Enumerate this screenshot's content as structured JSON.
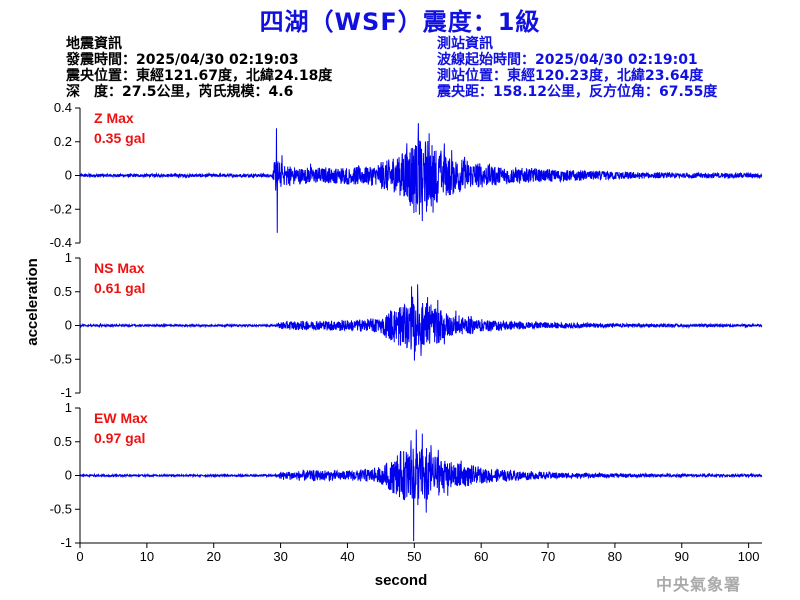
{
  "header": {
    "title": "四湖（WSF）震度：1級",
    "quake_info": {
      "heading": "地震資訊",
      "origin_time": "發震時間：2025/04/30 02:19:03",
      "epicenter": "震央位置：東經121.67度，北緯24.18度",
      "depth_magnitude": "深　度：27.5公里，芮氏規模：4.6"
    },
    "station_info": {
      "heading": "測站資訊",
      "wave_start": "波線起始時間：2025/04/30 02:19:01",
      "station_location": "測站位置：東經120.23度，北緯23.64度",
      "distance_azimuth": "震央距：158.12公里，反方位角：67.55度"
    }
  },
  "footer": {
    "agency": "中央氣象署"
  },
  "chart_data": {
    "type": "line",
    "color": "#0000ee",
    "annotation_color": "#ee1111",
    "xlabel": "second",
    "ylabel": "acceleration",
    "xlim": [
      0,
      102
    ],
    "xticks": [
      0,
      10,
      20,
      30,
      40,
      50,
      60,
      70,
      80,
      90,
      100
    ],
    "series": [
      {
        "name": "Z",
        "max_label": "Z Max",
        "max_value": "0.35 gal",
        "ylim": [
          -0.4,
          0.4
        ],
        "yticks": [
          -0.4,
          -0.2,
          0,
          0.2,
          0.4
        ],
        "ytick_labels": [
          "-0.4",
          "-0.2",
          "0",
          "0.2",
          "0.4"
        ],
        "noise_amplitude": 0.008,
        "envelope": [
          [
            0,
            0.008
          ],
          [
            28.8,
            0.008
          ],
          [
            29.2,
            0.09
          ],
          [
            30,
            0.06
          ],
          [
            33,
            0.04
          ],
          [
            38,
            0.04
          ],
          [
            44,
            0.05
          ],
          [
            48,
            0.12
          ],
          [
            50,
            0.2
          ],
          [
            52,
            0.17
          ],
          [
            55,
            0.1
          ],
          [
            60,
            0.06
          ],
          [
            65,
            0.04
          ],
          [
            75,
            0.025
          ],
          [
            85,
            0.015
          ],
          [
            102,
            0.012
          ]
        ],
        "peaks": [
          [
            29.4,
            0.28
          ],
          [
            29.5,
            -0.34
          ],
          [
            30.2,
            0.12
          ],
          [
            34.5,
            0.07
          ],
          [
            49.4,
            -0.18
          ],
          [
            50.6,
            0.31
          ],
          [
            51.2,
            -0.27
          ],
          [
            52.2,
            0.25
          ],
          [
            52.8,
            -0.22
          ],
          [
            54.5,
            0.19
          ],
          [
            55.6,
            0.15
          ],
          [
            57.5,
            0.11
          ],
          [
            59.5,
            0.07
          ]
        ]
      },
      {
        "name": "NS",
        "max_label": "NS Max",
        "max_value": "0.61 gal",
        "ylim": [
          -1,
          1
        ],
        "yticks": [
          -1,
          -0.5,
          0,
          0.5,
          1
        ],
        "ytick_labels": [
          "-1",
          "-0.5",
          "0",
          "0.5",
          "1"
        ],
        "noise_amplitude": 0.012,
        "envelope": [
          [
            0,
            0.012
          ],
          [
            29.5,
            0.012
          ],
          [
            30,
            0.05
          ],
          [
            35,
            0.06
          ],
          [
            41,
            0.07
          ],
          [
            45,
            0.1
          ],
          [
            48,
            0.28
          ],
          [
            50,
            0.35
          ],
          [
            52,
            0.28
          ],
          [
            55,
            0.15
          ],
          [
            60,
            0.08
          ],
          [
            65,
            0.05
          ],
          [
            75,
            0.03
          ],
          [
            85,
            0.02
          ],
          [
            102,
            0.015
          ]
        ],
        "peaks": [
          [
            49.6,
            0.58
          ],
          [
            50.0,
            -0.52
          ],
          [
            50.5,
            0.61
          ],
          [
            51.0,
            -0.45
          ],
          [
            52.0,
            0.42
          ],
          [
            53.5,
            0.38
          ],
          [
            54.5,
            -0.28
          ],
          [
            56.2,
            0.22
          ],
          [
            58.5,
            0.14
          ]
        ]
      },
      {
        "name": "EW",
        "max_label": "EW Max",
        "max_value": "0.97 gal",
        "ylim": [
          -1,
          1
        ],
        "yticks": [
          -1,
          -0.5,
          0,
          0.5,
          1
        ],
        "ytick_labels": [
          "-1",
          "-0.5",
          "0",
          "0.5",
          "1"
        ],
        "noise_amplitude": 0.012,
        "envelope": [
          [
            0,
            0.012
          ],
          [
            29.5,
            0.012
          ],
          [
            30,
            0.05
          ],
          [
            35,
            0.07
          ],
          [
            40,
            0.06
          ],
          [
            45,
            0.1
          ],
          [
            48,
            0.3
          ],
          [
            50,
            0.4
          ],
          [
            52,
            0.32
          ],
          [
            55,
            0.18
          ],
          [
            60,
            0.1
          ],
          [
            65,
            0.06
          ],
          [
            75,
            0.03
          ],
          [
            85,
            0.02
          ],
          [
            102,
            0.015
          ]
        ],
        "peaks": [
          [
            49.5,
            0.52
          ],
          [
            49.9,
            -0.97
          ],
          [
            50.3,
            0.68
          ],
          [
            51.2,
            0.62
          ],
          [
            51.8,
            -0.55
          ],
          [
            52.5,
            0.45
          ],
          [
            53.6,
            0.38
          ],
          [
            55.0,
            -0.3
          ],
          [
            57.0,
            0.22
          ]
        ]
      }
    ]
  }
}
